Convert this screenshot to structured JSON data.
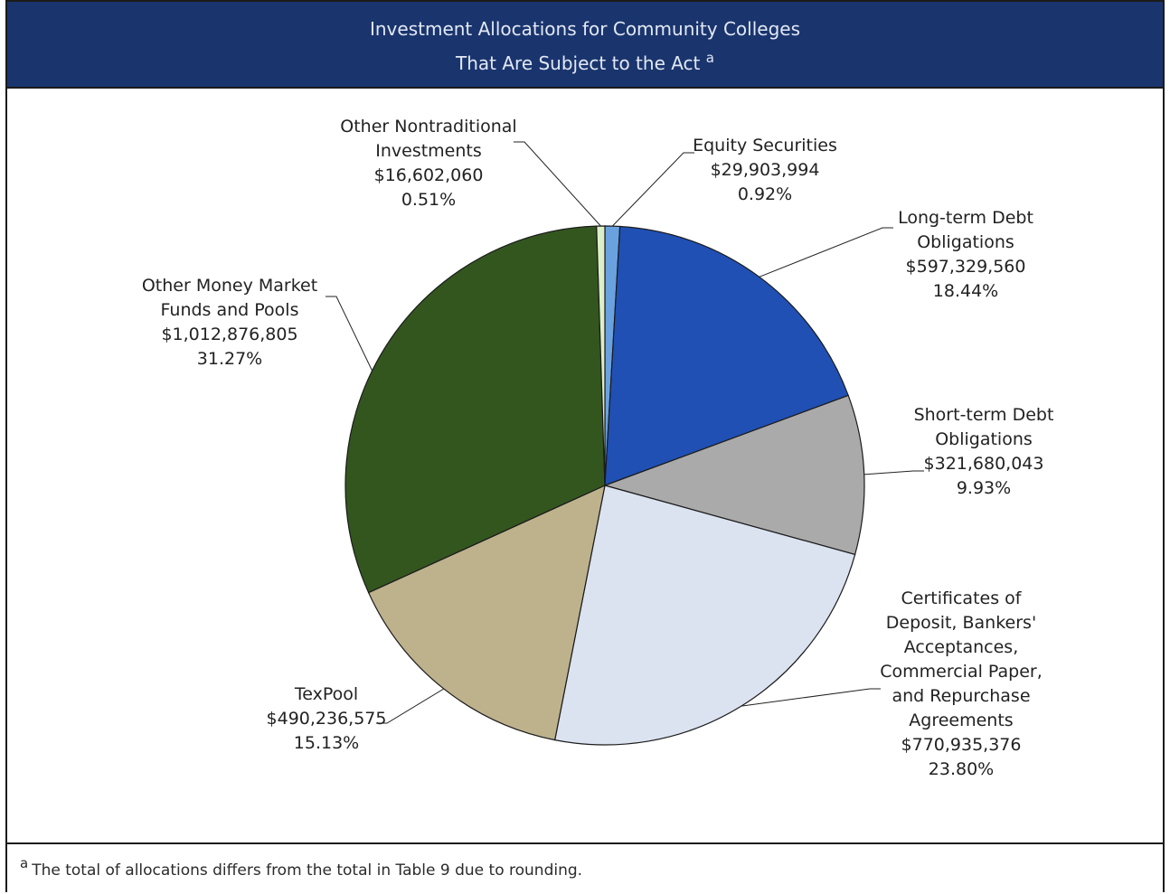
{
  "header": {
    "title_line1": "Investment Allocations for Community Colleges",
    "title_line2": "That Are Subject to the Act",
    "title_marker": "a"
  },
  "footnote": {
    "marker": "a",
    "text": "The total of allocations differs from the total in Table 9 due to rounding."
  },
  "colors": {
    "header_bg": "#1a356e",
    "outline": "#1b1b1b"
  },
  "chart_data": {
    "type": "pie",
    "unit": "$",
    "slices": [
      {
        "name": "Equity Securities",
        "label_lines": [
          "Equity Securities"
        ],
        "value": 29903994,
        "value_label": "$29,903,994",
        "percent": 0.92,
        "percent_label": "0.92%",
        "color": "#6aa2e0"
      },
      {
        "name": "Long-term Debt Obligations",
        "label_lines": [
          "Long-term Debt",
          "Obligations"
        ],
        "value": 597329560,
        "value_label": "$597,329,560",
        "percent": 18.44,
        "percent_label": "18.44%",
        "color": "#2050b4"
      },
      {
        "name": "Short-term Debt Obligations",
        "label_lines": [
          "Short-term Debt",
          "Obligations"
        ],
        "value": 321680043,
        "value_label": "$321,680,043",
        "percent": 9.93,
        "percent_label": "9.93%",
        "color": "#aaaaaa"
      },
      {
        "name": "Certificates of Deposit, Bankers' Acceptances, Commercial Paper, and Repurchase Agreements",
        "label_lines": [
          "Certificates of",
          "Deposit, Bankers'",
          "Acceptances,",
          "Commercial Paper,",
          "and Repurchase",
          "Agreements"
        ],
        "value": 770935376,
        "value_label": "$770,935,376",
        "percent": 23.8,
        "percent_label": "23.80%",
        "color": "#dbe2f0"
      },
      {
        "name": "TexPool",
        "label_lines": [
          "TexPool"
        ],
        "value": 490236575,
        "value_label": "$490,236,575",
        "percent": 15.13,
        "percent_label": "15.13%",
        "color": "#bdb28c"
      },
      {
        "name": "Other Money Market Funds and Pools",
        "label_lines": [
          "Other Money Market",
          "Funds and Pools"
        ],
        "value": 1012876805,
        "value_label": "$1,012,876,805",
        "percent": 31.27,
        "percent_label": "31.27%",
        "color": "#33561f"
      },
      {
        "name": "Other Nontraditional Investments",
        "label_lines": [
          "Other Nontraditional",
          "Investments"
        ],
        "value": 16602060,
        "value_label": "$16,602,060",
        "percent": 0.51,
        "percent_label": "0.51%",
        "color": "#dcefc8"
      }
    ]
  }
}
